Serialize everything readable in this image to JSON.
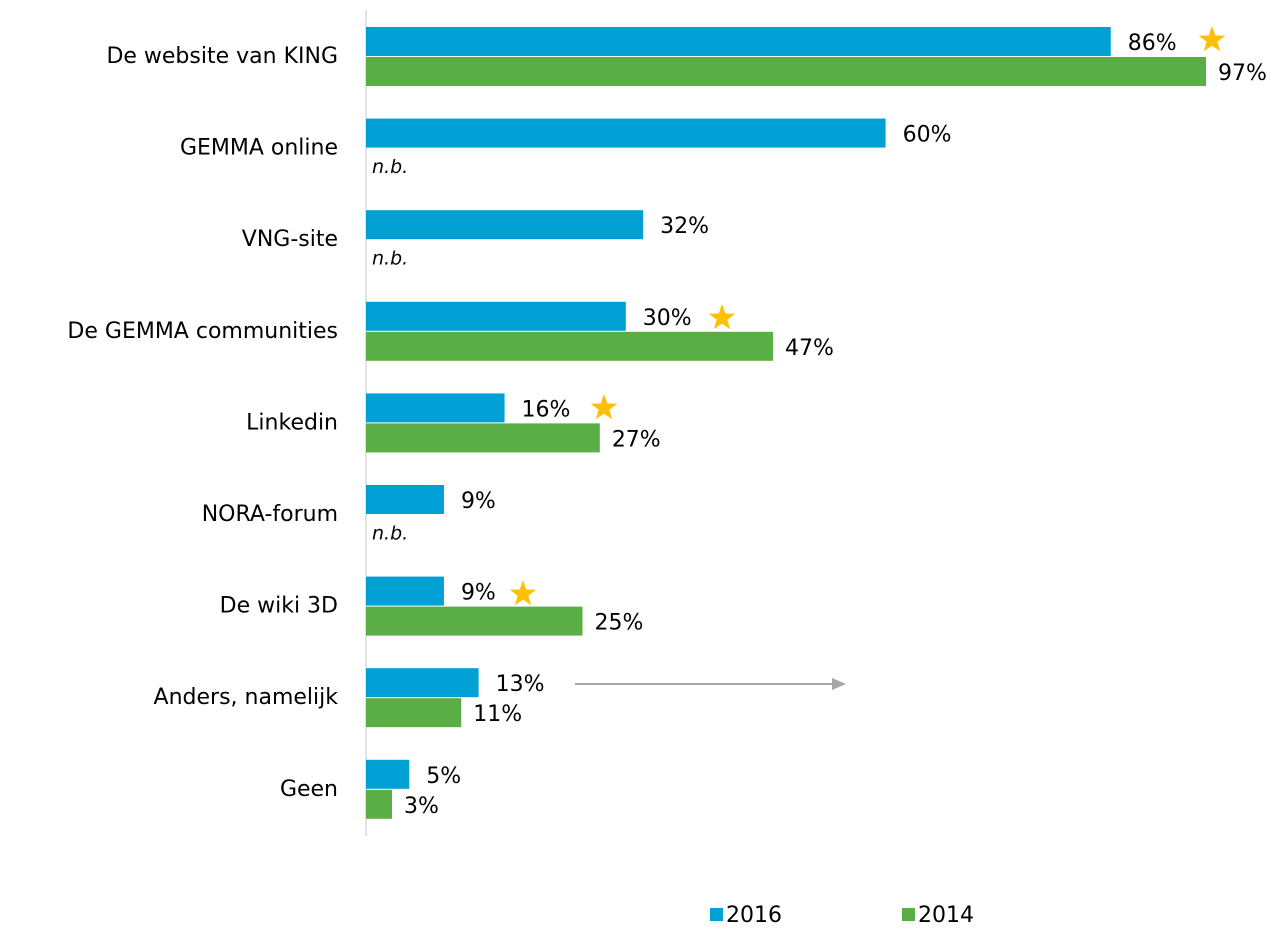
{
  "chart_data": {
    "type": "bar",
    "orientation": "horizontal",
    "categories": [
      "De website van KING",
      "GEMMA online",
      "VNG-site",
      "De GEMMA communities",
      "Linkedin",
      "NORA-forum",
      "De wiki 3D",
      "Anders, namelijk",
      "Geen"
    ],
    "series": [
      {
        "name": "2016",
        "color": "#009fd4",
        "label_color": "#595959",
        "values": [
          86,
          60,
          32,
          30,
          16,
          9,
          9,
          13,
          5
        ],
        "value_labels": [
          "86%",
          "60%",
          "32%",
          "30%",
          "16%",
          "9%",
          "9%",
          "13%",
          "5%"
        ]
      },
      {
        "name": "2014",
        "color": "#5aae45",
        "label_color": "#000000",
        "values": [
          97,
          null,
          null,
          47,
          27,
          null,
          25,
          11,
          3
        ],
        "value_labels": [
          "97%",
          "n.b.",
          "n.b.",
          "47%",
          "27%",
          "n.b.",
          "25%",
          "11%",
          "3%"
        ]
      }
    ],
    "xlim": [
      0,
      100
    ],
    "legend": "bottom"
  }
}
